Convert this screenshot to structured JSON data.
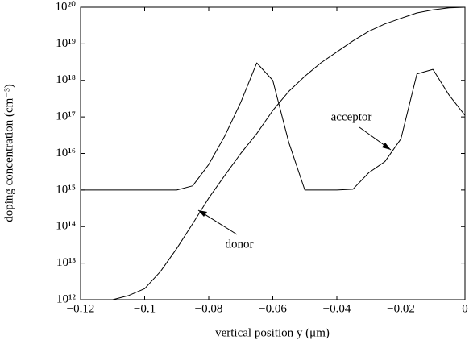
{
  "chart_data": {
    "type": "line",
    "xlabel": "vertical position y (μm)",
    "ylabel": "doping concentration (cm⁻³)",
    "x": [
      -0.12,
      -0.115,
      -0.11,
      -0.105,
      -0.1,
      -0.095,
      -0.09,
      -0.085,
      -0.08,
      -0.075,
      -0.07,
      -0.065,
      -0.06,
      -0.055,
      -0.05,
      -0.045,
      -0.04,
      -0.035,
      -0.03,
      -0.025,
      -0.02,
      -0.015,
      -0.01,
      -0.005,
      0
    ],
    "series": [
      {
        "name": "donor",
        "color": "#000000",
        "values": [
          null,
          null,
          1000000000000.0,
          1300000000000.0,
          2000000000000.0,
          6000000000000.0,
          25000000000000.0,
          120000000000000.0,
          600000000000000.0,
          2500000000000000.0,
          1e+16,
          3.5e+16,
          1.5e+17,
          5e+17,
          1.3e+18,
          3e+18,
          6e+18,
          1.2e+19,
          2.2e+19,
          3.5e+19,
          5e+19,
          7e+19,
          8.5e+19,
          9.6e+19,
          1e+20
        ]
      },
      {
        "name": "acceptor",
        "color": "#000000",
        "values": [
          1000000000000000.0,
          1000000000000000.0,
          1000000000000000.0,
          1000000000000000.0,
          1000000000000000.0,
          1000000000000000.0,
          1000000000000000.0,
          1300000000000000.0,
          5000000000000000.0,
          3e+16,
          2.5e+17,
          3e+18,
          1e+18,
          2e+16,
          1000000000000000.0,
          1000000000000000.0,
          1000000000000000.0,
          1050000000000000.0,
          3000000000000000.0,
          6000000000000000.0,
          2.5e+16,
          1.5e+18,
          2e+18,
          4e+17,
          1.1e+17
        ]
      }
    ],
    "xlim": [
      -0.12,
      0
    ],
    "xticks": [
      {
        "value": -0.12,
        "label": "−0.12"
      },
      {
        "value": -0.1,
        "label": "−0.1"
      },
      {
        "value": -0.08,
        "label": "−0.08"
      },
      {
        "value": -0.06,
        "label": "−0.06"
      },
      {
        "value": -0.04,
        "label": "−0.04"
      },
      {
        "value": -0.02,
        "label": "−0.02"
      },
      0
    ],
    "ylim": [
      1000000000000.0,
      1e+20
    ],
    "yticks": [
      {
        "value": 1000000000000.0,
        "label": "10¹²"
      },
      {
        "value": 10000000000000.0,
        "label": "10¹³"
      },
      {
        "value": 100000000000000.0,
        "label": "10¹⁴"
      },
      {
        "value": 1000000000000000.0,
        "label": "10¹⁵"
      },
      {
        "value": 1e+16,
        "label": "10¹⁶"
      },
      {
        "value": 1e+17,
        "label": "10¹⁷"
      },
      {
        "value": 1e+18,
        "label": "10¹⁸"
      },
      {
        "value": 1e+19,
        "label": "10¹⁹"
      },
      {
        "value": 1e+20,
        "label": "10²⁰"
      }
    ],
    "ylog": true,
    "annotations": [
      "acceptor",
      "donor"
    ]
  }
}
